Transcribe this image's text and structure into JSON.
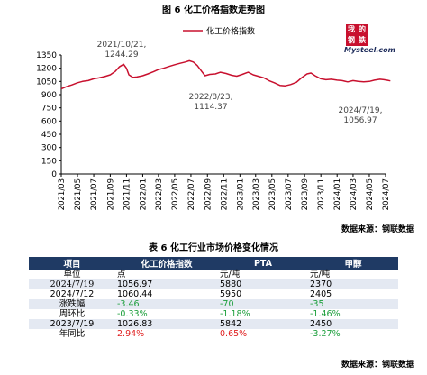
{
  "figure_title": "图 6 化工价格指数走势图",
  "table_title": "表 6 化工行业市场价格变化情况",
  "source_label": "数据来源：钢联数据",
  "logo": {
    "chars": [
      "我",
      "的",
      "钢",
      "铁"
    ],
    "sub": "Mysteel.com",
    "color": "#c8102e"
  },
  "colors": {
    "line": "#c8102e",
    "table_header": "#1f3a64",
    "up": "#e02020",
    "down": "#1a9e3a"
  },
  "chart_data": {
    "type": "line",
    "title": "图 6 化工价格指数走势图",
    "legend": {
      "label": "化工价格指数",
      "placement": "top-center"
    },
    "ylim": [
      0,
      1350
    ],
    "yticks": [
      0,
      150,
      300,
      450,
      600,
      750,
      900,
      1050,
      1200,
      1350
    ],
    "xlim": [
      "2021-03",
      "2024-07"
    ],
    "xticks": [
      "2021/03",
      "2021/05",
      "2021/07",
      "2021/09",
      "2021/11",
      "2022/01",
      "2022/03",
      "2022/05",
      "2022/07",
      "2022/09",
      "2022/11",
      "2023/01",
      "2023/03",
      "2023/05",
      "2023/07",
      "2023/09",
      "2023/11",
      "2024/01",
      "2024/03",
      "2024/05",
      "2024/07"
    ],
    "grid": false,
    "series": [
      {
        "name": "化工价格指数",
        "x": [
          "2021-03-01",
          "2021-03-20",
          "2021-04-10",
          "2021-05-01",
          "2021-05-20",
          "2021-06-10",
          "2021-07-01",
          "2021-07-20",
          "2021-08-10",
          "2021-09-01",
          "2021-09-20",
          "2021-10-05",
          "2021-10-21",
          "2021-11-01",
          "2021-11-10",
          "2021-11-25",
          "2021-12-10",
          "2022-01-01",
          "2022-01-20",
          "2022-02-10",
          "2022-03-01",
          "2022-03-20",
          "2022-04-10",
          "2022-05-01",
          "2022-05-20",
          "2022-06-10",
          "2022-06-25",
          "2022-07-10",
          "2022-07-25",
          "2022-08-10",
          "2022-08-23",
          "2022-09-10",
          "2022-10-01",
          "2022-10-20",
          "2022-11-10",
          "2022-12-01",
          "2022-12-20",
          "2023-01-10",
          "2023-02-01",
          "2023-02-20",
          "2023-03-10",
          "2023-04-01",
          "2023-04-20",
          "2023-05-10",
          "2023-05-31",
          "2023-06-20",
          "2023-07-10",
          "2023-08-01",
          "2023-08-20",
          "2023-09-10",
          "2023-09-25",
          "2023-10-10",
          "2023-11-01",
          "2023-11-20",
          "2023-12-10",
          "2024-01-01",
          "2024-01-20",
          "2024-02-10",
          "2024-03-01",
          "2024-03-20",
          "2024-04-10",
          "2024-05-01",
          "2024-05-20",
          "2024-06-10",
          "2024-06-25",
          "2024-07-12",
          "2024-07-19"
        ],
        "values": [
          965,
          990,
          1010,
          1035,
          1050,
          1060,
          1080,
          1090,
          1105,
          1125,
          1165,
          1215,
          1244.29,
          1200,
          1125,
          1095,
          1100,
          1115,
          1135,
          1160,
          1185,
          1200,
          1220,
          1240,
          1255,
          1270,
          1285,
          1270,
          1230,
          1165,
          1114.37,
          1130,
          1135,
          1155,
          1140,
          1120,
          1110,
          1130,
          1155,
          1125,
          1110,
          1090,
          1060,
          1035,
          1005,
          1000,
          1015,
          1040,
          1090,
          1135,
          1145,
          1115,
          1080,
          1070,
          1075,
          1065,
          1060,
          1045,
          1060,
          1050,
          1045,
          1050,
          1065,
          1075,
          1070,
          1060.44,
          1056.97
        ]
      }
    ],
    "annotations": [
      {
        "x": "2021-10-21",
        "y": 1244.29,
        "text": "2021/10/21,\n1244.29"
      },
      {
        "x": "2022-08-23",
        "y": 1114.37,
        "text": "2022/8/23,\n1114.37"
      },
      {
        "x": "2024-07-19",
        "y": 1056.97,
        "text": "2024/7/19,\n1056.97"
      }
    ]
  },
  "table": {
    "headers": [
      "项目",
      "化工价格指数",
      "PTA",
      "甲醇"
    ],
    "rows": [
      {
        "cells": [
          "单位",
          "点",
          "元/吨",
          "元/吨"
        ],
        "tones": [
          "",
          "",
          "",
          ""
        ]
      },
      {
        "cells": [
          "2024/7/19",
          "1056.97",
          "5880",
          "2370"
        ],
        "tones": [
          "",
          "",
          "",
          ""
        ]
      },
      {
        "cells": [
          "2024/7/12",
          "1060.44",
          "5950",
          "2405"
        ],
        "tones": [
          "",
          "",
          "",
          ""
        ]
      },
      {
        "cells": [
          "涨跌幅",
          "-3.46",
          "-70",
          "-35"
        ],
        "tones": [
          "",
          "neg",
          "neg",
          "neg"
        ]
      },
      {
        "cells": [
          "周环比",
          "-0.33%",
          "-1.18%",
          "-1.46%"
        ],
        "tones": [
          "",
          "neg",
          "neg",
          "neg"
        ]
      },
      {
        "cells": [
          "2023/7/19",
          "1026.83",
          "5842",
          "2450"
        ],
        "tones": [
          "",
          "",
          "",
          ""
        ]
      },
      {
        "cells": [
          "年同比",
          "2.94%",
          "0.65%",
          "-3.27%"
        ],
        "tones": [
          "",
          "pos",
          "pos",
          "neg"
        ]
      }
    ]
  }
}
